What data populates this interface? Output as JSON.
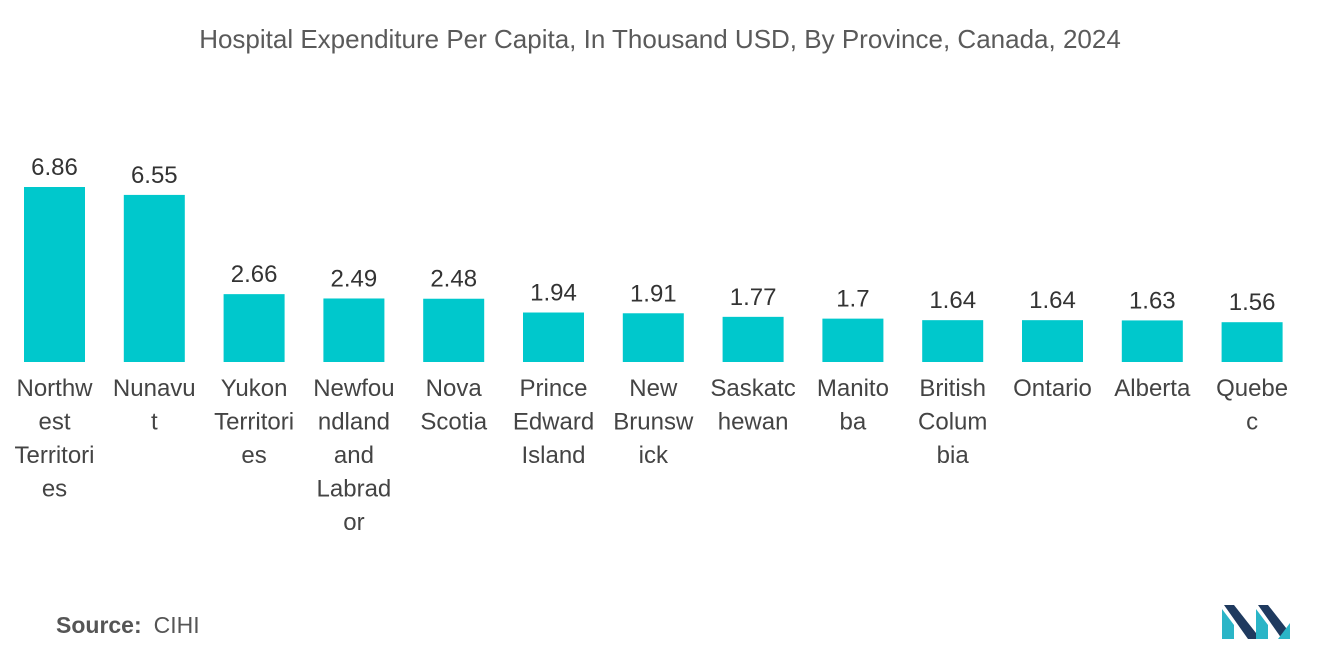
{
  "chart_data": {
    "type": "bar",
    "title": "Hospital Expenditure Per Capita, In Thousand USD, By Province, Canada, 2024",
    "categories": [
      "Northwest Territories",
      "Nunavut",
      "Yukon Territories",
      "Newfoundland and Labrador",
      "Nova Scotia",
      "Prince Edward Island",
      "New Brunswick",
      "Saskatchewan",
      "Manitoba",
      "British Columbia",
      "Ontario",
      "Alberta",
      "Quebec"
    ],
    "category_lines": [
      [
        "Northw",
        "est",
        "Territori",
        "es"
      ],
      [
        "Nunavu",
        "t"
      ],
      [
        "Yukon",
        "Territori",
        "es"
      ],
      [
        "Newfou",
        "ndland",
        "and",
        "Labrad",
        "or"
      ],
      [
        "Nova",
        "Scotia"
      ],
      [
        "Prince",
        "Edward",
        "Island"
      ],
      [
        "New",
        "Brunsw",
        "ick"
      ],
      [
        "Saskatc",
        "hewan"
      ],
      [
        "Manito",
        "ba"
      ],
      [
        "British",
        "Colum",
        "bia"
      ],
      [
        "Ontario"
      ],
      [
        "Alberta"
      ],
      [
        "Quebe",
        "c"
      ]
    ],
    "values": [
      6.86,
      6.55,
      2.66,
      2.49,
      2.48,
      1.94,
      1.91,
      1.77,
      1.7,
      1.64,
      1.64,
      1.63,
      1.56
    ],
    "value_labels": [
      "6.86",
      "6.55",
      "2.66",
      "2.49",
      "2.48",
      "1.94",
      "1.91",
      "1.77",
      "1.7",
      "1.64",
      "1.64",
      "1.63",
      "1.56"
    ],
    "xlabel": "",
    "ylabel": "",
    "ylim": [
      0,
      7
    ],
    "grid": false,
    "bar_color": "#00c8cc"
  },
  "source": {
    "label": "Source:",
    "value": "CIHI"
  },
  "colors": {
    "logo_dark": "#1f3a5f",
    "logo_teal": "#2bb5c7"
  }
}
